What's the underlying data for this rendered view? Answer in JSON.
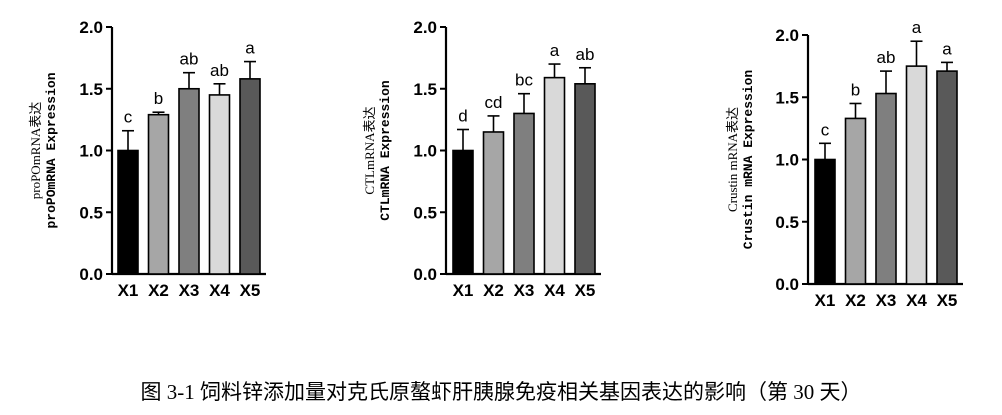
{
  "caption": "图 3-1  饲料锌添加量对克氏原螯虾肝胰腺免疫相关基因表达的影响（第 30 天）",
  "colors": [
    "#000000",
    "#a6a6a6",
    "#7f7f7f",
    "#d9d9d9",
    "#595959"
  ],
  "chart_data": [
    {
      "type": "bar",
      "ylabel_cn": "proPOmRNA表达",
      "ylabel_en": "proPOmRNA Expression",
      "categories": [
        "X1",
        "X2",
        "X3",
        "X4",
        "X5"
      ],
      "values": [
        1.0,
        1.29,
        1.5,
        1.45,
        1.58
      ],
      "errors": [
        0.16,
        0.02,
        0.13,
        0.09,
        0.14
      ],
      "significance": [
        "c",
        "b",
        "ab",
        "ab",
        "a"
      ],
      "ylim": [
        0,
        2.0
      ],
      "yticks": [
        "0.0",
        "0.5",
        "1.0",
        "1.5",
        "2.0"
      ]
    },
    {
      "type": "bar",
      "ylabel_cn": "CTLmRNA表达",
      "ylabel_en": "CTLmRNA Expression",
      "categories": [
        "X1",
        "X2",
        "X3",
        "X4",
        "X5"
      ],
      "values": [
        1.0,
        1.15,
        1.3,
        1.59,
        1.54
      ],
      "errors": [
        0.17,
        0.13,
        0.16,
        0.11,
        0.13
      ],
      "significance": [
        "d",
        "cd",
        "bc",
        "a",
        "ab"
      ],
      "ylim": [
        0,
        2.0
      ],
      "yticks": [
        "0.0",
        "0.5",
        "1.0",
        "1.5",
        "2.0"
      ]
    },
    {
      "type": "bar",
      "ylabel_cn": "Crustin mRNA表达",
      "ylabel_en": "Crustin mRNA Expression",
      "categories": [
        "X1",
        "X2",
        "X3",
        "X4",
        "X5"
      ],
      "values": [
        1.0,
        1.33,
        1.53,
        1.75,
        1.71
      ],
      "errors": [
        0.13,
        0.12,
        0.18,
        0.2,
        0.07
      ],
      "significance": [
        "c",
        "b",
        "ab",
        "a",
        "a"
      ],
      "ylim": [
        0,
        2.0
      ],
      "yticks": [
        "0.0",
        "0.5",
        "1.0",
        "1.5",
        "2.0"
      ]
    }
  ]
}
